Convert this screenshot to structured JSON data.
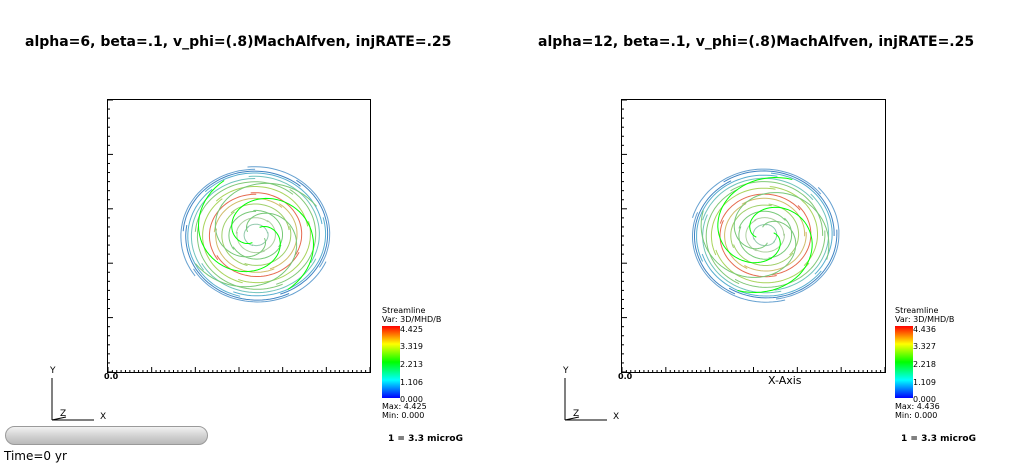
{
  "panels": [
    {
      "title": "alpha=6, beta=.1, v_phi=(.8)MachAlfven, injRATE=.25",
      "origin_label": "0.0",
      "axis_label": "",
      "legend": {
        "title": "Streamline",
        "variable": "Var: 3D/MHD/B",
        "ticks": [
          "4.425",
          "3.319",
          "2.213",
          "1.106",
          "0.000"
        ],
        "max": "Max: 4.425",
        "min": "Min: 0.000"
      },
      "scale_note": "1 = 3.3 microG",
      "triad": {
        "y": "Y",
        "z": "Z",
        "x": "X"
      }
    },
    {
      "title": "alpha=12, beta=.1, v_phi=(.8)MachAlfven, injRATE=.25",
      "origin_label": "0.0",
      "axis_label": "X-Axis",
      "legend": {
        "title": "Streamline",
        "variable": "Var: 3D/MHD/B",
        "ticks": [
          "4.436",
          "3.327",
          "2.218",
          "1.109",
          "0.000"
        ],
        "max": "Max: 4.436",
        "min": "Min: 0.000"
      },
      "scale_note": "1 = 3.3 microG",
      "triad": {
        "y": "Y",
        "z": "Z",
        "x": "X"
      }
    }
  ],
  "time_label": "Time=0 yr",
  "colormap": [
    "#ff0000",
    "#ffff00",
    "#00ff00",
    "#00ffff",
    "#0000ff"
  ]
}
